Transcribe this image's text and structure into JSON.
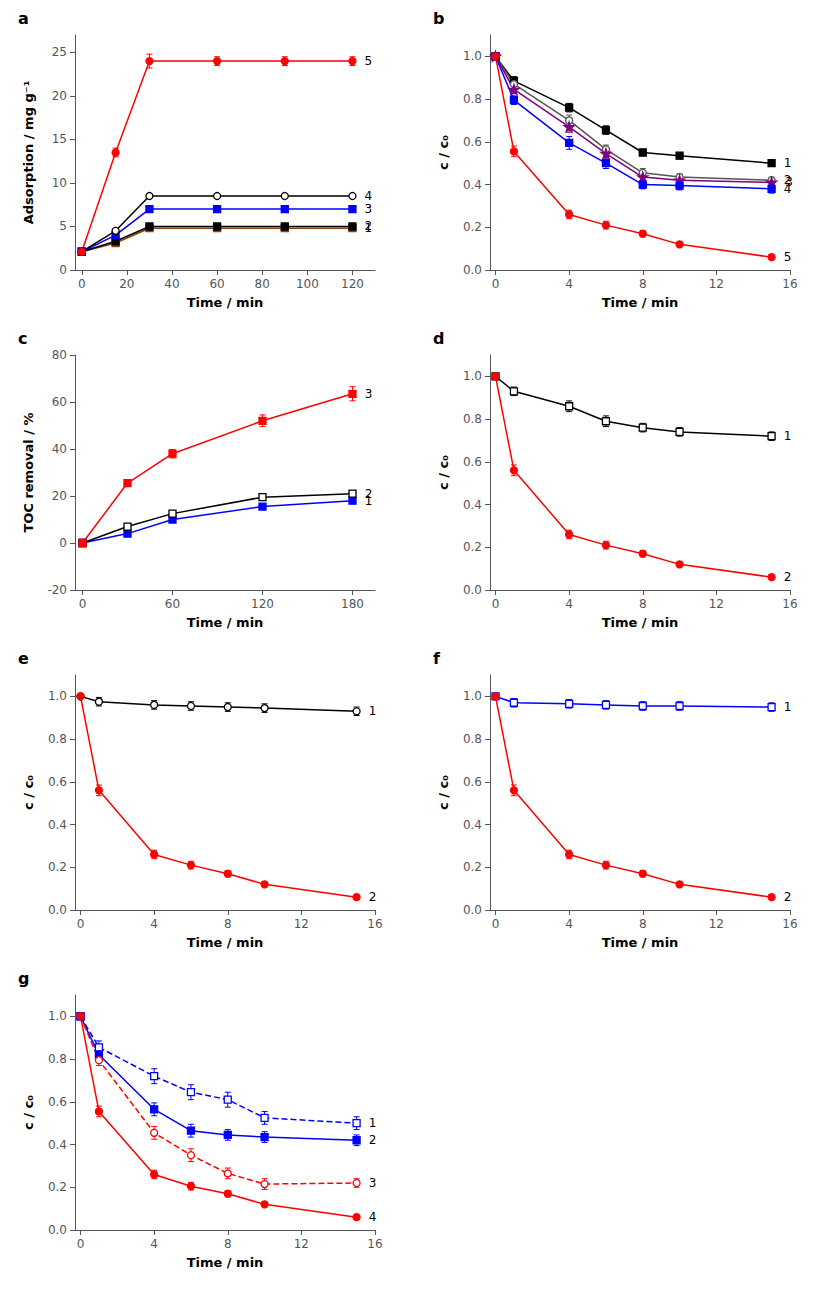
{
  "chart_data": [
    {
      "type": "line",
      "title": "a",
      "xlabel": "Time / min",
      "ylabel": "Adsorption / mg g⁻¹",
      "xlim": [
        -3,
        130
      ],
      "ylim": [
        0,
        27
      ],
      "xticks": [
        0,
        20,
        40,
        60,
        80,
        100,
        120
      ],
      "yticks": [
        0,
        5,
        10,
        15,
        20,
        25
      ],
      "grid": false,
      "series": [
        {
          "name": "1",
          "x": [
            0,
            15,
            30,
            60,
            90,
            120
          ],
          "values": [
            2.1,
            3.1,
            4.8,
            4.8,
            4.8,
            4.8
          ],
          "yerr": [
            0.1,
            0.15,
            0.15,
            0.1,
            0.1,
            0.1
          ],
          "color": "#8B4513",
          "marker": "square",
          "line_style": "solid"
        },
        {
          "name": "2",
          "x": [
            0,
            15,
            30,
            60,
            90,
            120
          ],
          "values": [
            2.1,
            3.3,
            5.0,
            5.0,
            5.0,
            5.0
          ],
          "yerr": [
            0.1,
            0.15,
            0.15,
            0.1,
            0.1,
            0.1
          ],
          "color": "#000000",
          "marker": "square",
          "line_style": "solid"
        },
        {
          "name": "3",
          "x": [
            0,
            15,
            30,
            60,
            90,
            120
          ],
          "values": [
            2.1,
            4.0,
            7.0,
            7.0,
            7.0,
            7.0
          ],
          "yerr": [
            0.1,
            0.15,
            0.15,
            0.1,
            0.1,
            0.1
          ],
          "color": "#0000FF",
          "marker": "square",
          "line_style": "solid"
        },
        {
          "name": "4",
          "x": [
            0,
            15,
            30,
            60,
            90,
            120
          ],
          "values": [
            2.1,
            4.5,
            8.5,
            8.5,
            8.5,
            8.5
          ],
          "yerr": [
            0.1,
            0.15,
            0.2,
            0.1,
            0.1,
            0.1
          ],
          "color": "#000000",
          "marker": "open-circle",
          "line_style": "solid"
        },
        {
          "name": "5",
          "x": [
            0,
            15,
            30,
            60,
            90,
            120
          ],
          "values": [
            2.1,
            13.5,
            24.0,
            24.0,
            24.0,
            24.0
          ],
          "yerr": [
            0.1,
            0.5,
            0.8,
            0.5,
            0.5,
            0.5
          ],
          "color": "#FF0000",
          "marker": "circle",
          "line_style": "solid"
        }
      ]
    },
    {
      "type": "line",
      "title": "b",
      "xlabel": "Time / min",
      "ylabel": "c / c₀",
      "xlim": [
        -0.3,
        16
      ],
      "ylim": [
        0,
        1.1
      ],
      "xticks": [
        0,
        4,
        8,
        12,
        16
      ],
      "yticks": [
        {
          "value": 0,
          "label": "0.0"
        },
        0.2,
        0.4,
        0.6,
        0.8,
        {
          "value": 1,
          "label": "1.0"
        }
      ],
      "grid": false,
      "series": [
        {
          "name": "1",
          "x": [
            0,
            1,
            4,
            6,
            8,
            10,
            15
          ],
          "values": [
            1.0,
            0.885,
            0.76,
            0.655,
            0.55,
            0.535,
            0.5
          ],
          "yerr": [
            0.01,
            0.02,
            0.02,
            0.02,
            0.015,
            0.015,
            0.015
          ],
          "color": "#000000",
          "marker": "square",
          "line_style": "solid"
        },
        {
          "name": "2",
          "x": [
            0,
            1,
            4,
            6,
            8,
            10,
            15
          ],
          "values": [
            1.0,
            0.87,
            0.7,
            0.565,
            0.455,
            0.435,
            0.42
          ],
          "yerr": [
            0.01,
            0.02,
            0.025,
            0.02,
            0.02,
            0.015,
            0.015
          ],
          "color": "#555555",
          "marker": "open-circle",
          "line_style": "solid"
        },
        {
          "name": "3",
          "x": [
            0,
            1,
            4,
            6,
            8,
            10,
            15
          ],
          "values": [
            1.0,
            0.845,
            0.67,
            0.545,
            0.435,
            0.42,
            0.41
          ],
          "yerr": [
            0.01,
            0.02,
            0.025,
            0.02,
            0.02,
            0.015,
            0.015
          ],
          "color": "#800080",
          "marker": "star",
          "line_style": "solid"
        },
        {
          "name": "4",
          "x": [
            0,
            1,
            4,
            6,
            8,
            10,
            15
          ],
          "values": [
            1.0,
            0.795,
            0.595,
            0.5,
            0.4,
            0.395,
            0.38
          ],
          "yerr": [
            0.01,
            0.02,
            0.03,
            0.025,
            0.02,
            0.02,
            0.02
          ],
          "color": "#0000FF",
          "marker": "square",
          "line_style": "solid"
        },
        {
          "name": "5",
          "x": [
            0,
            1,
            4,
            6,
            8,
            10,
            15
          ],
          "values": [
            1.0,
            0.555,
            0.26,
            0.21,
            0.17,
            0.12,
            0.06
          ],
          "yerr": [
            0.01,
            0.025,
            0.02,
            0.018,
            0.015,
            0.012,
            0.01
          ],
          "color": "#FF0000",
          "marker": "circle",
          "line_style": "solid"
        }
      ]
    },
    {
      "type": "line",
      "title": "c",
      "xlabel": "Time / min",
      "ylabel": "TOC removal / %",
      "xlim": [
        -5,
        195
      ],
      "ylim": [
        -20,
        80
      ],
      "xticks": [
        0,
        60,
        120,
        180
      ],
      "yticks": [
        -20,
        0,
        20,
        40,
        60,
        80
      ],
      "grid": false,
      "series": [
        {
          "name": "1",
          "x": [
            0,
            30,
            60,
            120,
            180
          ],
          "values": [
            0,
            4.0,
            10.0,
            15.5,
            18.0
          ],
          "yerr": [
            0.1,
            0.3,
            0.5,
            0.6,
            0.6
          ],
          "color": "#0000FF",
          "marker": "square",
          "line_style": "solid"
        },
        {
          "name": "2",
          "x": [
            0,
            30,
            60,
            120,
            180
          ],
          "values": [
            0,
            7.0,
            12.5,
            19.5,
            21.0
          ],
          "yerr": [
            0.1,
            0.3,
            0.5,
            0.6,
            0.6
          ],
          "color": "#000000",
          "marker": "open-square",
          "line_style": "solid"
        },
        {
          "name": "3",
          "x": [
            0,
            30,
            60,
            120,
            180
          ],
          "values": [
            0,
            25.5,
            38.0,
            52.0,
            63.5
          ],
          "yerr": [
            0.1,
            1.2,
            1.8,
            2.5,
            3.0
          ],
          "color": "#FF0000",
          "marker": "square",
          "line_style": "solid"
        }
      ]
    },
    {
      "type": "line",
      "title": "d",
      "xlabel": "Time / min",
      "ylabel": "c / c₀",
      "xlim": [
        -0.3,
        16
      ],
      "ylim": [
        0,
        1.1
      ],
      "xticks": [
        0,
        4,
        8,
        12,
        16
      ],
      "yticks": [
        {
          "value": 0,
          "label": "0.0"
        },
        0.2,
        0.4,
        0.6,
        0.8,
        {
          "value": 1,
          "label": "1.0"
        }
      ],
      "grid": false,
      "series": [
        {
          "name": "1",
          "x": [
            0,
            1,
            4,
            6,
            8,
            10,
            15
          ],
          "values": [
            1.0,
            0.93,
            0.86,
            0.79,
            0.76,
            0.74,
            0.72
          ],
          "yerr": [
            0.01,
            0.02,
            0.025,
            0.025,
            0.02,
            0.02,
            0.02
          ],
          "color": "#000000",
          "marker": "open-square",
          "line_style": "solid"
        },
        {
          "name": "2",
          "x": [
            0,
            1,
            4,
            6,
            8,
            10,
            15
          ],
          "values": [
            1.0,
            0.56,
            0.26,
            0.21,
            0.17,
            0.12,
            0.06
          ],
          "yerr": [
            0.01,
            0.025,
            0.02,
            0.018,
            0.015,
            0.012,
            0.01
          ],
          "color": "#FF0000",
          "marker": "circle",
          "line_style": "solid"
        }
      ]
    },
    {
      "type": "line",
      "title": "e",
      "xlabel": "Time / min",
      "ylabel": "c / c₀",
      "xlim": [
        -0.3,
        16
      ],
      "ylim": [
        0,
        1.1
      ],
      "xticks": [
        0,
        4,
        8,
        12,
        16
      ],
      "yticks": [
        {
          "value": 0,
          "label": "0.0"
        },
        0.2,
        0.4,
        0.6,
        0.8,
        {
          "value": 1,
          "label": "1.0"
        }
      ],
      "grid": false,
      "series": [
        {
          "name": "1",
          "x": [
            0,
            1,
            4,
            6,
            8,
            10,
            15
          ],
          "values": [
            1.0,
            0.975,
            0.96,
            0.955,
            0.95,
            0.945,
            0.93
          ],
          "yerr": [
            0.01,
            0.02,
            0.02,
            0.02,
            0.02,
            0.02,
            0.02
          ],
          "color": "#000000",
          "marker": "open-circle",
          "line_style": "solid"
        },
        {
          "name": "2",
          "x": [
            0,
            1,
            4,
            6,
            8,
            10,
            15
          ],
          "values": [
            1.0,
            0.56,
            0.26,
            0.21,
            0.17,
            0.12,
            0.06
          ],
          "yerr": [
            0.01,
            0.025,
            0.02,
            0.018,
            0.015,
            0.012,
            0.01
          ],
          "color": "#FF0000",
          "marker": "circle",
          "line_style": "solid"
        }
      ]
    },
    {
      "type": "line",
      "title": "f",
      "xlabel": "Time / min",
      "ylabel": "c / c₀",
      "xlim": [
        -0.3,
        16
      ],
      "ylim": [
        0,
        1.1
      ],
      "xticks": [
        0,
        4,
        8,
        12,
        16
      ],
      "yticks": [
        {
          "value": 0,
          "label": "0.0"
        },
        0.2,
        0.4,
        0.6,
        0.8,
        {
          "value": 1,
          "label": "1.0"
        }
      ],
      "grid": false,
      "series": [
        {
          "name": "1",
          "x": [
            0,
            1,
            4,
            6,
            8,
            10,
            15
          ],
          "values": [
            1.0,
            0.97,
            0.965,
            0.96,
            0.955,
            0.955,
            0.95
          ],
          "yerr": [
            0.01,
            0.02,
            0.02,
            0.02,
            0.02,
            0.02,
            0.02
          ],
          "color": "#0000FF",
          "marker": "open-square",
          "line_style": "solid"
        },
        {
          "name": "2",
          "x": [
            0,
            1,
            4,
            6,
            8,
            10,
            15
          ],
          "values": [
            1.0,
            0.56,
            0.26,
            0.21,
            0.17,
            0.12,
            0.06
          ],
          "yerr": [
            0.01,
            0.025,
            0.02,
            0.018,
            0.015,
            0.012,
            0.01
          ],
          "color": "#FF0000",
          "marker": "circle",
          "line_style": "solid"
        }
      ]
    },
    {
      "type": "line",
      "title": "g",
      "xlabel": "Time / min",
      "ylabel": "c / c₀",
      "xlim": [
        -0.3,
        16
      ],
      "ylim": [
        0,
        1.1
      ],
      "xticks": [
        0,
        4,
        8,
        12,
        16
      ],
      "yticks": [
        {
          "value": 0,
          "label": "0.0"
        },
        0.2,
        0.4,
        0.6,
        0.8,
        {
          "value": 1,
          "label": "1.0"
        }
      ],
      "grid": false,
      "series": [
        {
          "name": "1",
          "x": [
            0,
            1,
            4,
            6,
            8,
            10,
            15
          ],
          "values": [
            1.0,
            0.855,
            0.72,
            0.645,
            0.61,
            0.525,
            0.5
          ],
          "yerr": [
            0.01,
            0.03,
            0.035,
            0.035,
            0.035,
            0.03,
            0.03
          ],
          "color": "#0000FF",
          "marker": "open-square",
          "line_style": "dashed"
        },
        {
          "name": "2",
          "x": [
            0,
            1,
            4,
            6,
            8,
            10,
            15
          ],
          "values": [
            1.0,
            0.82,
            0.565,
            0.465,
            0.445,
            0.435,
            0.42
          ],
          "yerr": [
            0.01,
            0.025,
            0.03,
            0.03,
            0.025,
            0.025,
            0.025
          ],
          "color": "#0000FF",
          "marker": "square",
          "line_style": "solid"
        },
        {
          "name": "3",
          "x": [
            0,
            1,
            4,
            6,
            8,
            10,
            15
          ],
          "values": [
            1.0,
            0.795,
            0.455,
            0.35,
            0.265,
            0.215,
            0.22
          ],
          "yerr": [
            0.01,
            0.025,
            0.03,
            0.03,
            0.025,
            0.025,
            0.02
          ],
          "color": "#FF0000",
          "marker": "open-circle",
          "line_style": "dashed"
        },
        {
          "name": "4",
          "x": [
            0,
            1,
            4,
            6,
            8,
            10,
            15
          ],
          "values": [
            1.0,
            0.555,
            0.26,
            0.205,
            0.17,
            0.12,
            0.06
          ],
          "yerr": [
            0.01,
            0.025,
            0.02,
            0.018,
            0.015,
            0.012,
            0.01
          ],
          "color": "#FF0000",
          "marker": "circle",
          "line_style": "solid"
        }
      ]
    }
  ]
}
